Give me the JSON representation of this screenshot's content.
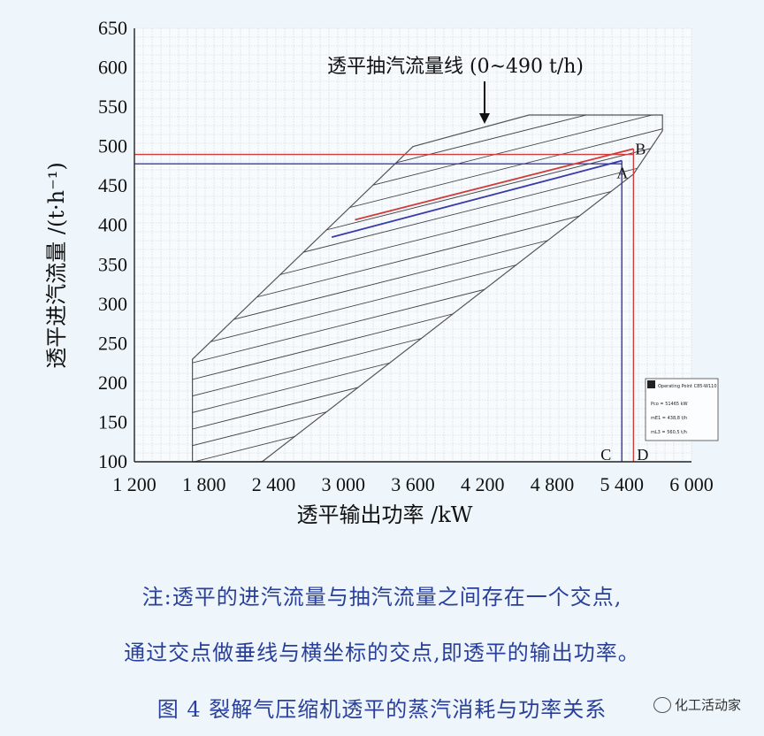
{
  "chart_data": {
    "type": "line",
    "title": "",
    "xlabel": "透平输出功率 /kW",
    "ylabel": "透平进汽流量 /(t·h⁻¹)",
    "x_ticks": [
      "1 200",
      "1 800",
      "2 400",
      "3 000",
      "3 600",
      "4 200",
      "4 800",
      "5 400",
      "6 000"
    ],
    "y_ticks": [
      "100",
      "150",
      "200",
      "250",
      "300",
      "350",
      "400",
      "450",
      "500",
      "550",
      "600",
      "650"
    ],
    "xlim": [
      1200,
      6000
    ],
    "ylim": [
      100,
      650
    ],
    "envelope": [
      {
        "x": 1700,
        "y": 100
      },
      {
        "x": 1700,
        "y": 230
      },
      {
        "x": 3600,
        "y": 500
      },
      {
        "x": 4600,
        "y": 540
      },
      {
        "x": 5750,
        "y": 540
      },
      {
        "x": 5750,
        "y": 520
      },
      {
        "x": 5500,
        "y": 465
      },
      {
        "x": 2300,
        "y": 100
      }
    ],
    "extraction_lines": [
      0,
      20,
      40,
      60,
      80,
      100,
      120,
      140,
      160,
      180,
      200,
      220,
      240,
      260,
      280,
      300,
      320,
      340,
      360,
      380,
      400,
      420,
      440,
      460,
      480
    ],
    "series": [
      {
        "name": "",
        "color": "#d33a3a",
        "x": [
          3100,
          5500
        ],
        "y": [
          407,
          497
        ]
      },
      {
        "name": "",
        "color": "#3a3aa8",
        "x": [
          2900,
          5400
        ],
        "y": [
          385,
          482
        ]
      }
    ],
    "reference_lines": [
      {
        "color": "#d33a3a",
        "from": {
          "x": 1200,
          "y": 490
        },
        "to": {
          "x": 5500,
          "y": 490
        }
      },
      {
        "color": "#3a3aa8",
        "from": {
          "x": 1200,
          "y": 478
        },
        "to": {
          "x": 5400,
          "y": 478
        }
      },
      {
        "color": "#3a3aa8",
        "from": {
          "x": 5400,
          "y": 100
        },
        "to": {
          "x": 5400,
          "y": 482
        }
      },
      {
        "color": "#d33a3a",
        "from": {
          "x": 5500,
          "y": 100
        },
        "to": {
          "x": 5500,
          "y": 497
        }
      }
    ],
    "points": [
      {
        "label": "A",
        "x": 5400,
        "y": 482
      },
      {
        "label": "B",
        "x": 5500,
        "y": 497
      },
      {
        "label": "C",
        "x": 5400,
        "y": 100
      },
      {
        "label": "D",
        "x": 5500,
        "y": 100
      }
    ],
    "annotation": "透平抽汽流量线 (0~490 t/h)",
    "grid": true,
    "inset_box": {
      "title": "Operating Point C85-W110",
      "lines": [
        "Pco = 51465 kW",
        "mE1 = 438,8 t/h",
        "mL3 = 560,5 t/h"
      ]
    }
  },
  "notes": {
    "line1": "注:透平的进汽流量与抽汽流量之间存在一个交点,",
    "line2": "通过交点做垂线与横坐标的交点,即透平的输出功率。",
    "caption": "图 4   裂解气压缩机透平的蒸汽消耗与功率关系"
  },
  "watermark": "化工活动家",
  "colors": {
    "red": "#d33a3a",
    "blue": "#3a3aa8",
    "note_text": "#2a3f9a",
    "background": "#eef6fb"
  }
}
